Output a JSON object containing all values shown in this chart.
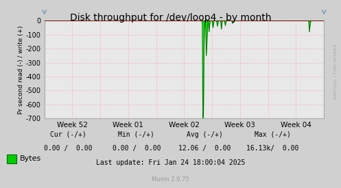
{
  "title": "Disk throughput for /dev/loop4 - by month",
  "ylabel": "Pr second read (-) / write (+)",
  "background_color": "#d0d0d0",
  "plot_bg_color": "#e8e8e8",
  "grid_color": "#ff9999",
  "ylim": [
    -700,
    0
  ],
  "yticks": [
    0,
    -100,
    -200,
    -300,
    -400,
    -500,
    -600,
    -700
  ],
  "x_labels": [
    "Week 52",
    "Week 01",
    "Week 02",
    "Week 03",
    "Week 04"
  ],
  "x_tick_pos": [
    0.5,
    1.5,
    2.5,
    3.5,
    4.5
  ],
  "legend_label": "Bytes",
  "legend_color": "#00cc00",
  "footer_cur": "Cur (-/+)",
  "footer_min": "Min (-/+)",
  "footer_avg": "Avg (-/+)",
  "footer_max": "Max (-/+)",
  "footer_cur_val": "0.00 /  0.00",
  "footer_min_val": "0.00 /  0.00",
  "footer_avg_val": "12.06 /  0.00",
  "footer_max_val": "16.13k/  0.00",
  "last_update": "Last update: Fri Jan 24 18:00:04 2025",
  "munin_version": "Munin 2.0.75",
  "rrdtool_text": "RRDTOOL / TOBI OETIKER",
  "line_color": "#00ee00",
  "dark_line_color": "#007700",
  "top_line_color": "#880000",
  "spine_color": "#aaaaaa",
  "arrow_color": "#7799bb"
}
